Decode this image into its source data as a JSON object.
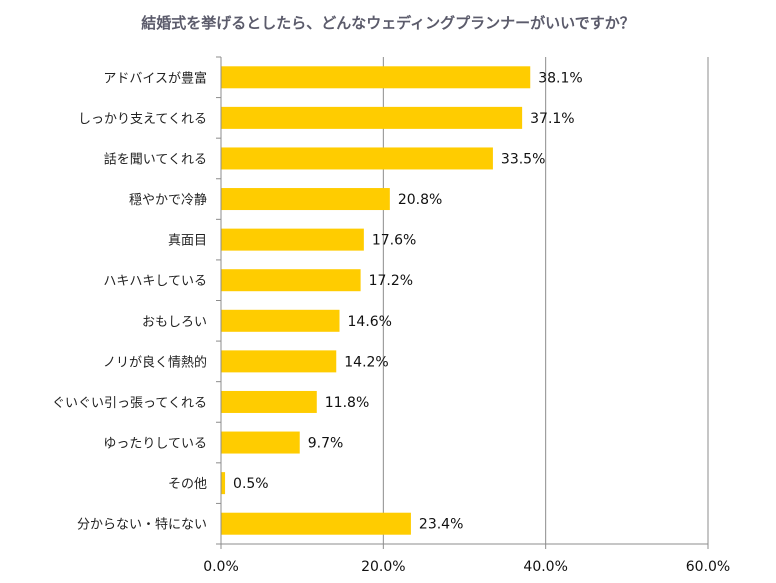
{
  "chart_data": {
    "type": "bar",
    "orientation": "horizontal",
    "title": "結婚式を挙げるとしたら、どんなウェディングプランナーがいいですか？",
    "categories": [
      "アドバイスが豊富",
      "しっかり支えてくれる",
      "話を聞いてくれる",
      "穏やかで冷静",
      "真面目",
      "ハキハキしている",
      "おもしろい",
      "ノリが良く情熱的",
      "ぐいぐい引っ張ってくれる",
      "ゆったりしている",
      "その他",
      "分からない・特にない"
    ],
    "values": [
      38.1,
      37.1,
      33.5,
      20.8,
      17.6,
      17.2,
      14.6,
      14.2,
      11.8,
      9.7,
      0.5,
      23.4
    ],
    "value_labels": [
      "38.1%",
      "37.1%",
      "33.5%",
      "20.8%",
      "17.6%",
      "17.2%",
      "14.6%",
      "14.2%",
      "11.8%",
      "9.7%",
      "0.5%",
      "23.4%"
    ],
    "xlim": [
      0,
      60
    ],
    "xticks": [
      0,
      20,
      40,
      60
    ],
    "xtick_labels": [
      "0.0%",
      "20.0%",
      "40.0%",
      "60.0%"
    ],
    "xlabel": "",
    "ylabel": "",
    "grid": true,
    "bar_color": "#FFCC00"
  }
}
